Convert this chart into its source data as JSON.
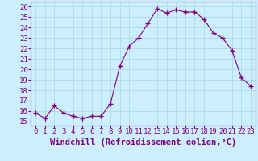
{
  "x": [
    0,
    1,
    2,
    3,
    4,
    5,
    6,
    7,
    8,
    9,
    10,
    11,
    12,
    13,
    14,
    15,
    16,
    17,
    18,
    19,
    20,
    21,
    22,
    23
  ],
  "y": [
    15.8,
    15.3,
    16.5,
    15.8,
    15.5,
    15.3,
    15.5,
    15.5,
    16.7,
    20.3,
    22.2,
    23.0,
    24.4,
    25.8,
    25.4,
    25.7,
    25.5,
    25.5,
    24.8,
    23.5,
    23.0,
    21.8,
    19.2,
    18.4
  ],
  "line_color": "#800080",
  "marker": "+",
  "marker_size": 4,
  "marker_lw": 1.0,
  "bg_color": "#cceeff",
  "grid_color": "#aadddd",
  "xlabel": "Windchill (Refroidissement éolien,°C)",
  "xlabel_color": "#800080",
  "ylabel_ticks": [
    15,
    16,
    17,
    18,
    19,
    20,
    21,
    22,
    23,
    24,
    25,
    26
  ],
  "ylim": [
    14.6,
    26.5
  ],
  "xlim": [
    -0.5,
    23.5
  ],
  "xtick_labels": [
    "0",
    "1",
    "2",
    "3",
    "4",
    "5",
    "6",
    "7",
    "8",
    "9",
    "10",
    "11",
    "12",
    "13",
    "14",
    "15",
    "16",
    "17",
    "18",
    "19",
    "20",
    "21",
    "22",
    "23"
  ],
  "tick_color": "#800080",
  "axis_color": "#800080",
  "font_size": 6.5,
  "xlabel_font_size": 7.5
}
